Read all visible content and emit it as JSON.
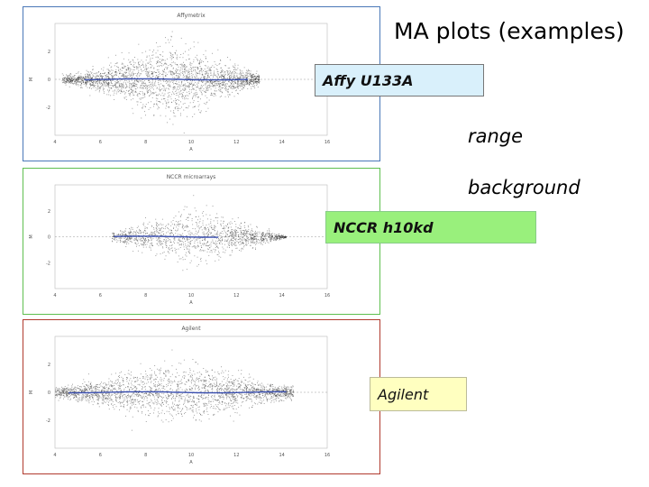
{
  "slide": {
    "title": "MA plots (examples)",
    "notes": [
      "range",
      "background"
    ]
  },
  "chart_data": [
    {
      "type": "scatter",
      "title": "Affymetrix",
      "tag": "Affy U133A",
      "frame_color": "#4a78b8",
      "label_bg": "#d9f0fb",
      "xlabel": "A",
      "ylabel": "M",
      "xlim": [
        4,
        16
      ],
      "ylim": [
        -4,
        4
      ],
      "x_ticks": [
        "4",
        "6",
        "8",
        "10",
        "12",
        "14",
        "16"
      ],
      "y_ticks": [
        "2",
        "0",
        "-2"
      ],
      "points": "dense scatter, widest spread at A≈8-10 (M from -3.5 to 3.5), tapering to narrow band at high A",
      "loess_color": "#3a4fb0"
    },
    {
      "type": "scatter",
      "title": "NCCR microarrays",
      "tag": "NCCR h10kd",
      "frame_color": "#5fbf4f",
      "label_bg": "#99f07c",
      "xlabel": "A",
      "ylabel": "M",
      "xlim": [
        4,
        16
      ],
      "ylim": [
        -4,
        4
      ],
      "x_ticks": [
        "4",
        "6",
        "8",
        "10",
        "12",
        "14",
        "16"
      ],
      "y_ticks": [
        "2",
        "0",
        "-2"
      ],
      "points": "diamond-shaped cloud centred near A≈10, max spread M≈±3",
      "loess_color": "#3a4fb0"
    },
    {
      "type": "scatter",
      "title": "Agilent",
      "tag": "Agilent",
      "frame_color": "#b03a2e",
      "label_bg": "#ffffc0",
      "xlabel": "A",
      "ylabel": "M",
      "xlim": [
        4,
        16
      ],
      "ylim": [
        -4,
        4
      ],
      "x_ticks": [
        "4",
        "6",
        "8",
        "10",
        "12",
        "14",
        "16"
      ],
      "y_ticks": [
        "2",
        "0",
        "-2"
      ],
      "points": "wide cloud across A, max spread M≈±3 near A≈9",
      "loess_color": "#3a4fb0"
    }
  ]
}
